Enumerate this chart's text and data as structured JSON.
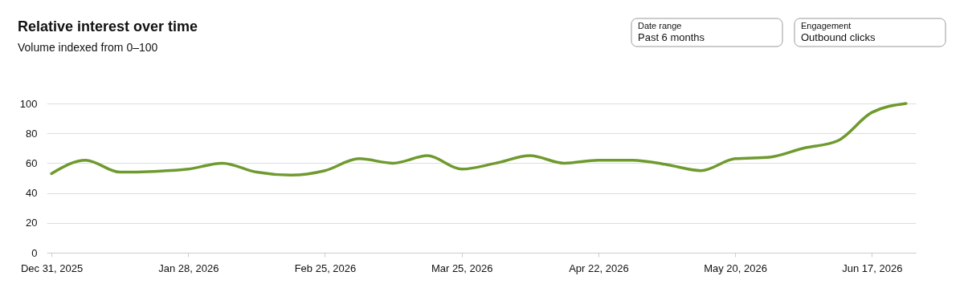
{
  "chart_data": {
    "type": "line",
    "title": "Relative interest over time",
    "subtitle": "Volume indexed from 0–100",
    "annotations": [
      "Date range",
      "Past 6 months",
      "Engagement",
      "Outbound clicks"
    ],
    "x": [
      "2025-12-31",
      "2026-01-07",
      "2026-01-14",
      "2026-01-21",
      "2026-01-28",
      "2026-02-04",
      "2026-02-11",
      "2026-02-18",
      "2026-02-25",
      "2026-03-04",
      "2026-03-11",
      "2026-03-18",
      "2026-03-25",
      "2026-04-01",
      "2026-04-08",
      "2026-04-15",
      "2026-04-22",
      "2026-04-29",
      "2026-05-06",
      "2026-05-13",
      "2026-05-20",
      "2026-05-27",
      "2026-06-03",
      "2026-06-10",
      "2026-06-17",
      "2026-06-24"
    ],
    "series": [
      {
        "color": "#6f9a2e",
        "values": [
          53,
          62,
          54,
          54.5,
          56,
          60,
          54,
          52,
          55,
          63,
          60,
          65,
          56,
          60,
          65,
          60,
          62,
          62,
          59,
          55,
          63,
          64,
          70,
          75,
          94,
          100
        ]
      }
    ],
    "xlim": [
      "2025-12-30",
      "2026-06-26"
    ],
    "xticks": [
      {
        "value": "2025-12-31",
        "label": "Dec 31, 2025"
      },
      {
        "value": "2026-01-28",
        "label": "Jan 28, 2026"
      },
      {
        "value": "2026-02-25",
        "label": "Feb 25, 2026"
      },
      {
        "value": "2026-03-25",
        "label": "Mar 25, 2026"
      },
      {
        "value": "2026-04-22",
        "label": "Apr 22, 2026"
      },
      {
        "value": "2026-05-20",
        "label": "May 20, 2026"
      },
      {
        "value": "2026-06-17",
        "label": "Jun 17, 2026"
      }
    ],
    "ylim": [
      0,
      100
    ],
    "yticks": [
      0,
      20,
      40,
      60,
      80,
      100
    ],
    "grid": "y",
    "legend": false,
    "marker": "none",
    "line_style": "solid"
  }
}
